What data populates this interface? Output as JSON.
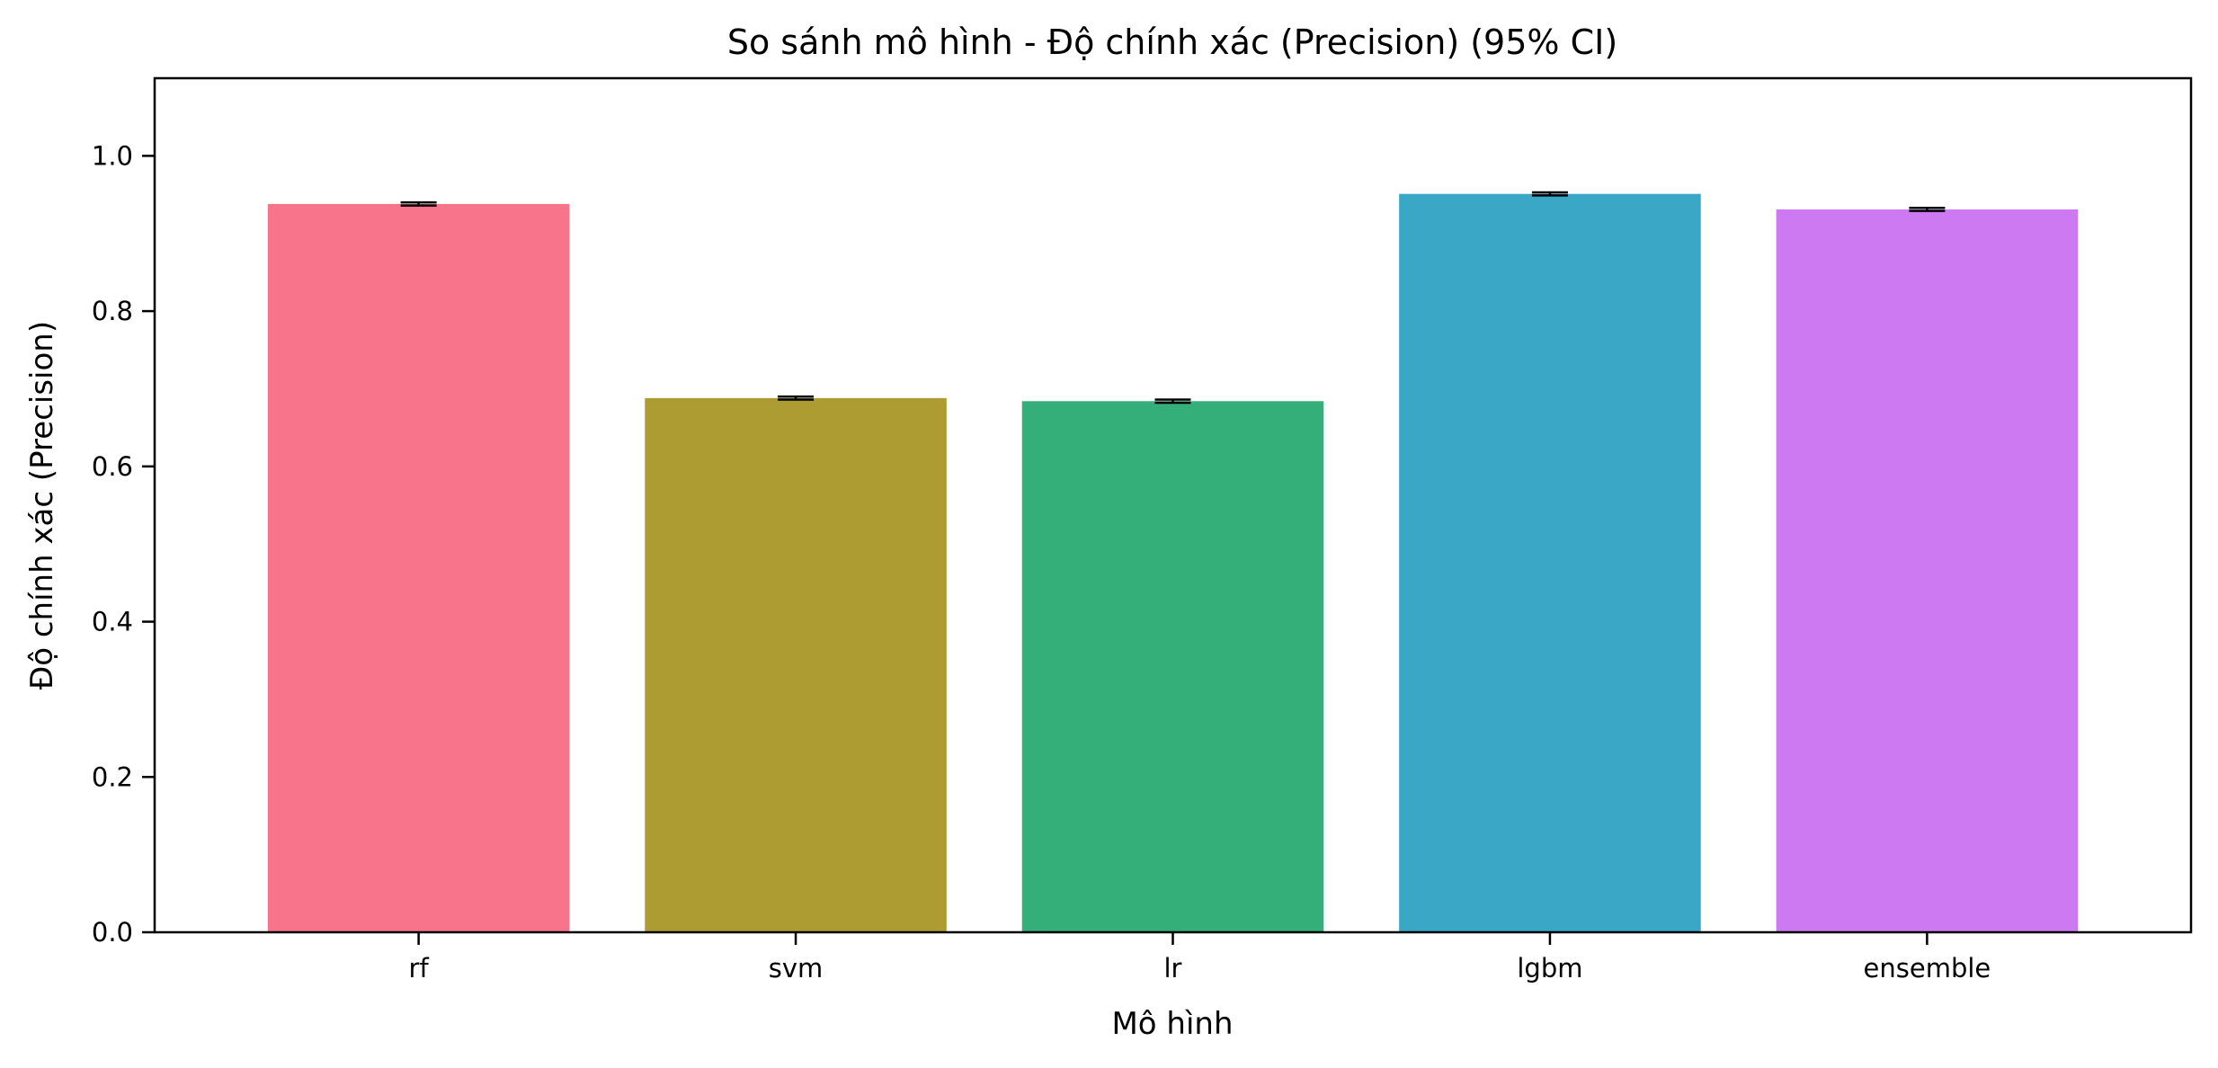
{
  "chart_data": {
    "type": "bar",
    "title": "So sánh mô hình - Độ chính xác (Precision) (95% CI)",
    "xlabel": "Mô hình",
    "ylabel": "Độ chính xác (Precision)",
    "categories": [
      "rf",
      "svm",
      "lr",
      "lgbm",
      "ensemble"
    ],
    "values": [
      0.938,
      0.688,
      0.684,
      0.951,
      0.931
    ],
    "error": [
      0.002,
      0.002,
      0.002,
      0.002,
      0.002
    ],
    "colors": [
      "#f7748a",
      "#ad9c32",
      "#35af79",
      "#39a7c5",
      "#cc79f2"
    ],
    "ylim": [
      0,
      1.1
    ],
    "yticks": [
      "0.0",
      "0.2",
      "0.4",
      "0.6",
      "0.8",
      "1.0"
    ],
    "grid": false,
    "legend": "none"
  }
}
